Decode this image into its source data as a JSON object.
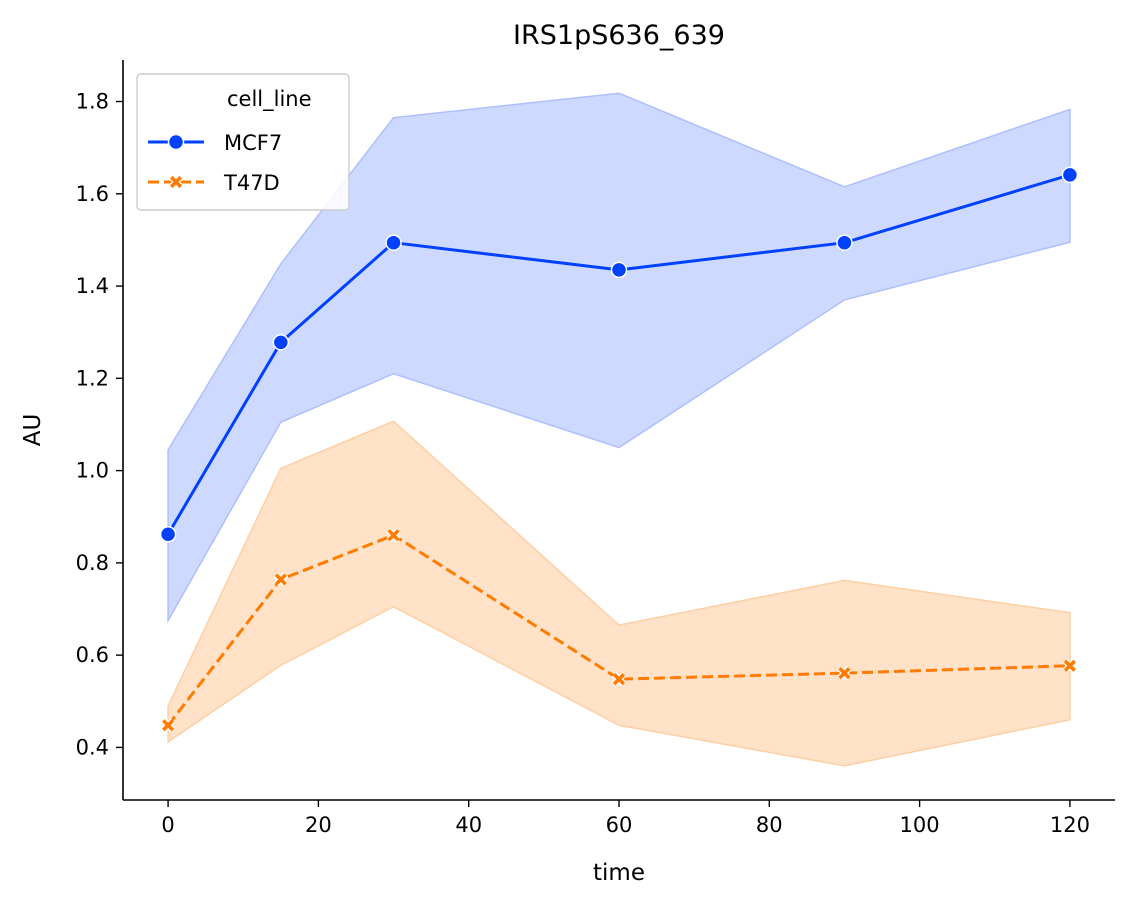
{
  "chart_data": {
    "type": "line",
    "title": "IRS1pS636_639",
    "xlabel": "time",
    "ylabel": "AU",
    "xlim": [
      -6,
      126
    ],
    "ylim": [
      0.286,
      1.89
    ],
    "x_ticks": [
      0,
      20,
      40,
      60,
      80,
      100,
      120
    ],
    "y_ticks": [
      0.4,
      0.6,
      0.8,
      1.0,
      1.2,
      1.4,
      1.6,
      1.8
    ],
    "legend": {
      "title": "cell_line",
      "position": "top-left"
    },
    "x": [
      0,
      15,
      30,
      60,
      90,
      120
    ],
    "series": [
      {
        "name": "MCF7",
        "color": "#0041ff",
        "band_color": "#aebfff",
        "marker": "circle",
        "linestyle": "solid",
        "values": [
          0.862,
          1.278,
          1.494,
          1.435,
          1.494,
          1.641
        ],
        "ci_low": [
          0.675,
          1.105,
          1.21,
          1.05,
          1.37,
          1.495
        ],
        "ci_high": [
          1.045,
          1.448,
          1.765,
          1.818,
          1.615,
          1.783
        ]
      },
      {
        "name": "T47D",
        "color": "#ff7c00",
        "band_color": "#ffcfa4",
        "marker": "x",
        "linestyle": "dashed",
        "values": [
          0.448,
          0.764,
          0.86,
          0.548,
          0.561,
          0.577
        ],
        "ci_low": [
          0.412,
          0.578,
          0.705,
          0.448,
          0.36,
          0.46
        ],
        "ci_high": [
          0.49,
          1.005,
          1.107,
          0.665,
          0.762,
          0.692
        ]
      }
    ]
  }
}
